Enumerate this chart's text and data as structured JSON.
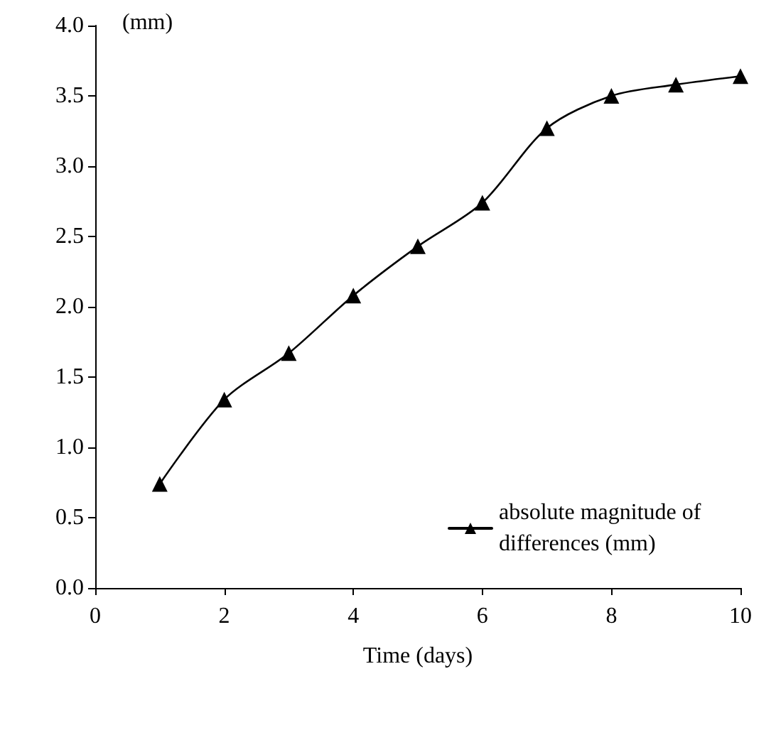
{
  "chart_data": {
    "type": "line",
    "xlabel": "Time (days)",
    "annotations": [
      "(mm)"
    ],
    "x": [
      1,
      2,
      3,
      4,
      5,
      6,
      7,
      8,
      9,
      10
    ],
    "series": [
      {
        "name": "absolute magnitude of differences (mm)",
        "color": "#000000",
        "values": [
          0.74,
          1.34,
          1.67,
          2.08,
          2.43,
          2.74,
          3.27,
          3.5,
          3.58,
          3.64
        ]
      }
    ],
    "xlim": [
      0,
      10
    ],
    "xticks": [
      0,
      2,
      4,
      6,
      8,
      10
    ],
    "ylim": [
      0,
      4
    ],
    "yticks": [
      {
        "value": 0,
        "label": "0.0"
      },
      {
        "value": 0.5,
        "label": "0.5"
      },
      {
        "value": 1,
        "label": "1.0"
      },
      {
        "value": 1.5,
        "label": "1.5"
      },
      {
        "value": 2,
        "label": "2.0"
      },
      {
        "value": 2.5,
        "label": "2.5"
      },
      {
        "value": 3,
        "label": "3.0"
      },
      {
        "value": 3.5,
        "label": "3.5"
      },
      {
        "value": 4,
        "label": "4.0"
      }
    ],
    "grid": false,
    "legend": "bottom right",
    "marker": "triangle",
    "line_style": "solid"
  }
}
